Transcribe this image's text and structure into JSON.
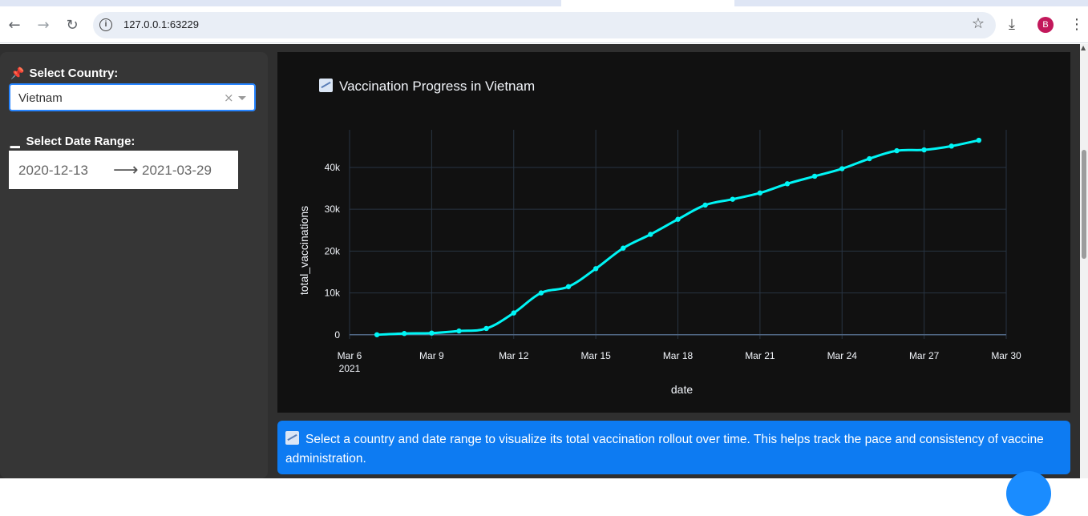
{
  "browser": {
    "url": "127.0.0.1:63229",
    "avatar_letter": "B"
  },
  "sidebar": {
    "country_label": "Select Country:",
    "country_value": "Vietnam",
    "date_label": "Select Date Range:",
    "start_date": "2020-12-13",
    "end_date": "2021-03-29"
  },
  "chart": {
    "title_text": "Vaccination Progress in Vietnam"
  },
  "info": {
    "text": "Select a country and date range to visualize its total vaccination rollout over time. This helps track the pace and consistency of vaccine administration."
  },
  "chart_data": {
    "type": "line",
    "title": "Vaccination Progress in Vietnam",
    "xlabel": "date",
    "ylabel": "total_vaccinations",
    "x_ticks": [
      "Mar 6\n2021",
      "Mar 9",
      "Mar 12",
      "Mar 15",
      "Mar 18",
      "Mar 21",
      "Mar 24",
      "Mar 27",
      "Mar 30"
    ],
    "y_ticks": [
      "0",
      "10k",
      "20k",
      "30k",
      "40k"
    ],
    "xlim": [
      "2021-03-06",
      "2021-03-30"
    ],
    "ylim": [
      -1000,
      49000
    ],
    "grid": true,
    "line_color": "#00f5f5",
    "x": [
      "2021-03-07",
      "2021-03-08",
      "2021-03-09",
      "2021-03-10",
      "2021-03-11",
      "2021-03-12",
      "2021-03-13",
      "2021-03-14",
      "2021-03-15",
      "2021-03-16",
      "2021-03-17",
      "2021-03-18",
      "2021-03-19",
      "2021-03-20",
      "2021-03-21",
      "2021-03-22",
      "2021-03-23",
      "2021-03-24",
      "2021-03-25",
      "2021-03-26",
      "2021-03-27",
      "2021-03-28",
      "2021-03-29"
    ],
    "values": [
      0,
      300,
      400,
      900,
      1500,
      5200,
      10000,
      11500,
      15800,
      20700,
      24000,
      27600,
      31000,
      32400,
      33900,
      36100,
      37900,
      39700,
      42100,
      44000,
      44200,
      45100,
      46500
    ]
  }
}
